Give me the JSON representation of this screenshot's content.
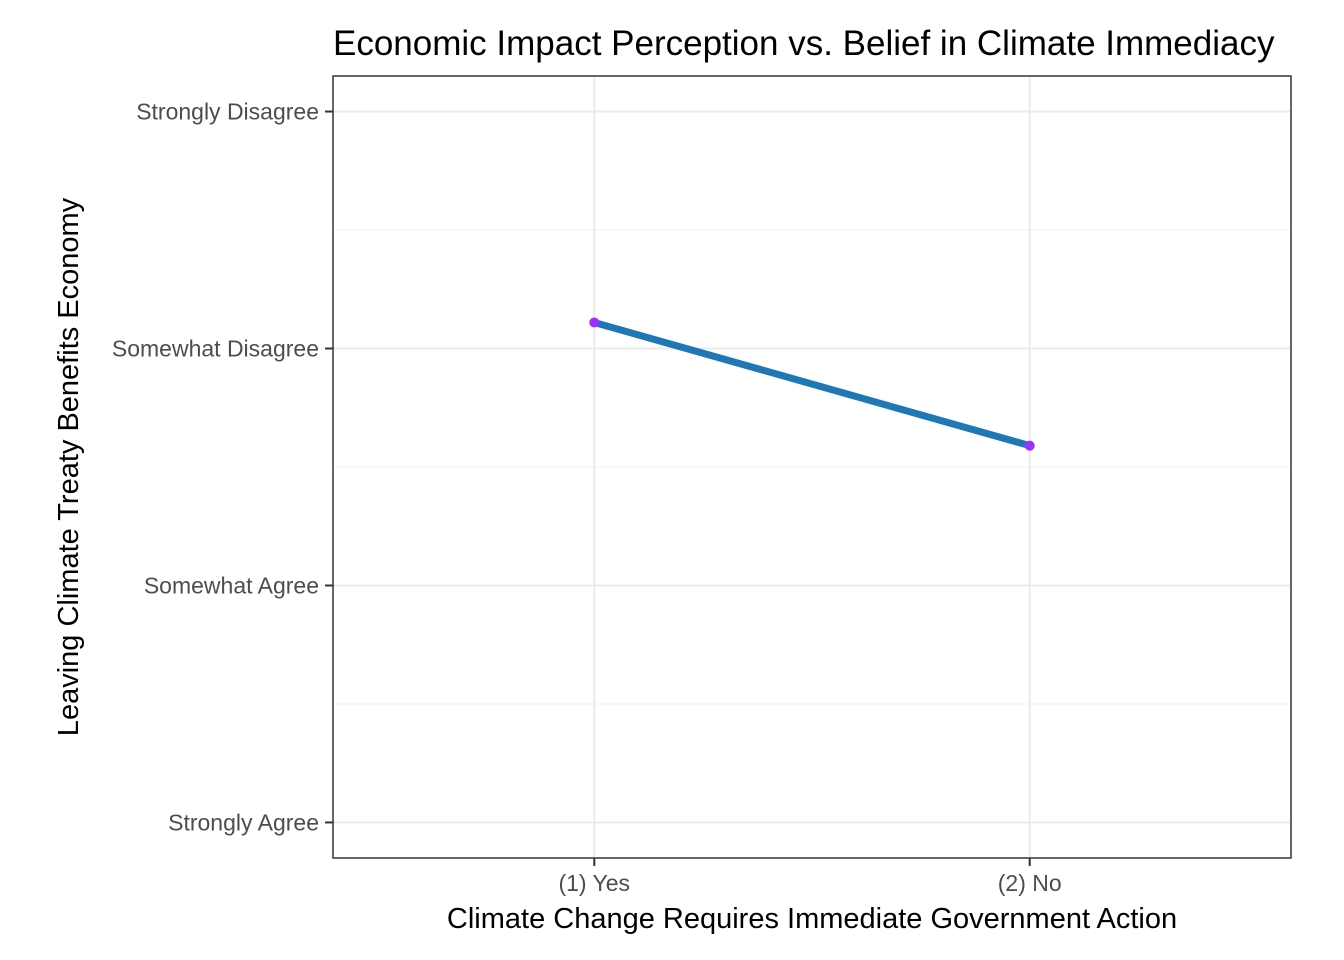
{
  "chart_data": {
    "type": "line",
    "title": "Economic Impact Perception vs. Belief in Climate Immediacy",
    "xlabel": "Climate Change Requires Immediate Government Action",
    "ylabel": "Leaving Climate Treaty Benefits Economy",
    "categories": [
      "(1) Yes",
      "(2) No"
    ],
    "y_levels": [
      "Strongly Agree",
      "Somewhat Agree",
      "Somewhat Disagree",
      "Strongly Disagree"
    ],
    "y_level_values": [
      1,
      2,
      3,
      4
    ],
    "ylim": [
      0.85,
      4.15
    ],
    "y_reversed": true,
    "grid": true,
    "series": [
      {
        "values": [
          3.11,
          2.59
        ],
        "line_color": "#1f77b4",
        "point_color": "#9b30ff"
      }
    ]
  }
}
